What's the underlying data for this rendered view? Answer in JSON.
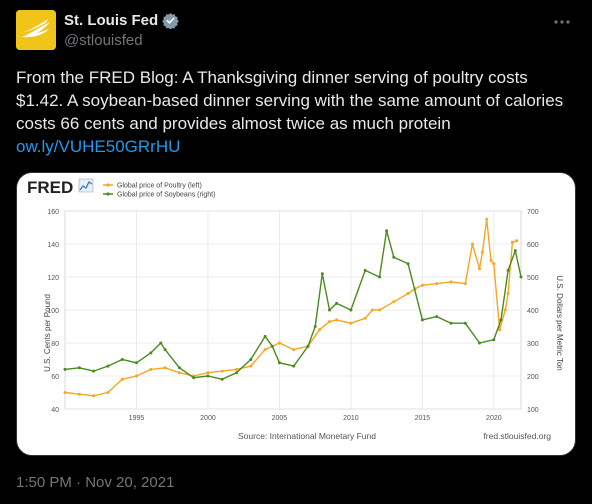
{
  "tweet": {
    "display_name": "St. Louis Fed",
    "handle": "@stlouisfed",
    "text": "From the FRED Blog: A Thanksgiving dinner serving of poultry costs $1.42. A soybean-based dinner serving with the same amount of calories costs 66 cents and provides almost twice as much protein",
    "link": "ow.ly/VUHE50GRrHU",
    "timestamp": "1:50 PM · Nov 20, 2021",
    "icons": {
      "avatar": "eagle-logo",
      "verified": "verified-badge-icon",
      "more": "more-options-icon"
    },
    "colors": {
      "link": "#1d9bf0",
      "avatar_bg": "#f0c419"
    }
  },
  "chart_data": {
    "type": "line",
    "logo": "FRED",
    "source": "Source: International Monetary Fund",
    "site": "fred.stlouisfed.org",
    "ylabel_left": "U.S. Cents per Pound",
    "ylabel_right": "U.S. Dollars per Metric Ton",
    "xlim": [
      1990,
      2021.9
    ],
    "x_ticks": [
      1995,
      2000,
      2005,
      2010,
      2015,
      2020
    ],
    "ylim_left": [
      40,
      160
    ],
    "yticks_left": [
      40,
      60,
      80,
      100,
      120,
      140,
      160
    ],
    "ylim_right": [
      100,
      700
    ],
    "yticks_right": [
      100,
      200,
      300,
      400,
      500,
      600,
      700
    ],
    "grid": true,
    "legend_placement": "top-left",
    "series": [
      {
        "name": "Global price of Poultry (left)",
        "axis": "left",
        "color": "#f5a623",
        "x": [
          1990,
          1991,
          1992,
          1993,
          1994,
          1995,
          1996,
          1997,
          1998,
          1999,
          2000,
          2001,
          2002,
          2003,
          2004,
          2005,
          2006,
          2007,
          2007.8,
          2008.5,
          2009,
          2010,
          2011,
          2011.5,
          2012,
          2013,
          2014,
          2014.5,
          2015,
          2016,
          2017,
          2018,
          2018.5,
          2019,
          2019.2,
          2019.5,
          2019.8,
          2020,
          2020.4,
          2020.8,
          2021,
          2021.3,
          2021.6
        ],
        "values": [
          50,
          49,
          48,
          50,
          58,
          60,
          64,
          65,
          62,
          60,
          62,
          63,
          64,
          66,
          76,
          80,
          76,
          78,
          88,
          93,
          94,
          92,
          95,
          100,
          100,
          105,
          110,
          113,
          115,
          116,
          117,
          116,
          140,
          125,
          135,
          155,
          130,
          128,
          88,
          100,
          110,
          141,
          142
        ]
      },
      {
        "name": "Global price of Soybeans (right)",
        "axis": "right",
        "color": "#4b8a1e",
        "x": [
          1990,
          1991,
          1992,
          1993,
          1994,
          1995,
          1996,
          1996.7,
          1997,
          1998,
          1999,
          2000,
          2001,
          2002,
          2003,
          2004,
          2004.5,
          2005,
          2006,
          2007,
          2007.5,
          2008,
          2008.5,
          2009,
          2010,
          2011,
          2012,
          2012.5,
          2013,
          2014,
          2015,
          2016,
          2017,
          2018,
          2019,
          2020,
          2020.5,
          2021,
          2021.5,
          2021.9
        ],
        "values": [
          220,
          225,
          215,
          230,
          250,
          240,
          270,
          300,
          280,
          225,
          195,
          200,
          190,
          210,
          250,
          320,
          290,
          240,
          230,
          290,
          350,
          510,
          400,
          420,
          400,
          520,
          500,
          640,
          560,
          540,
          370,
          380,
          360,
          360,
          300,
          310,
          370,
          520,
          580,
          500
        ]
      }
    ]
  }
}
